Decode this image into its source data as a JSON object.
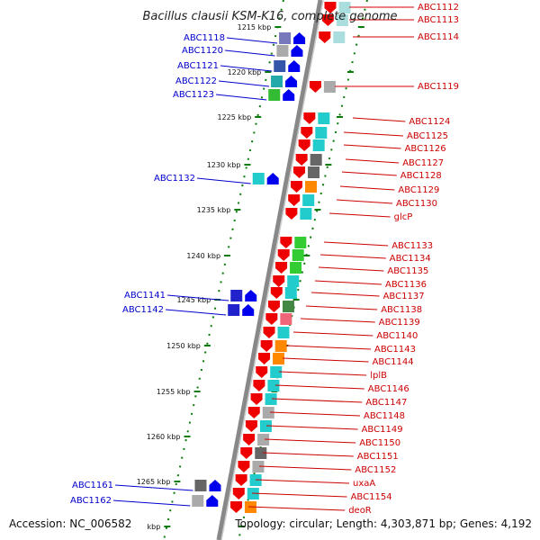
{
  "title": "Bacillus clausii KSM-K16, complete genome",
  "accession": "Accession: NC_006582",
  "summary": "Topology: circular; Length: 4,303,871 bp; Genes: 4,192",
  "colors": {
    "forward_label": "#cc0000",
    "reverse_label": "#0000cc",
    "backbone": "#888888",
    "tick": "#0a7a0a"
  },
  "ticks": [
    "1215 kbp",
    "1220 kbp",
    "1225 kbp",
    "1230 kbp",
    "1235 kbp",
    "1240 kbp",
    "1245 kbp",
    "1250 kbp",
    "1255 kbp",
    "1260 kbp",
    "1265 kbp",
    "kbp"
  ],
  "reverse_genes": [
    {
      "label": "ABC1118",
      "cog": "#7777bb"
    },
    {
      "label": "ABC1120",
      "cog": "#aaaaaa"
    },
    {
      "label": "ABC1121",
      "cog": "#3355aa"
    },
    {
      "label": "ABC1122",
      "cog": "#22aaaa"
    },
    {
      "label": "ABC1123",
      "cog": "#33bb33"
    },
    {
      "label": "ABC1132",
      "cog": "#22cccc"
    },
    {
      "label": "ABC1141",
      "cog": "#2222cc"
    },
    {
      "label": "ABC1142",
      "cog": "#2222cc"
    },
    {
      "label": "ABC1161",
      "cog": "#666666"
    },
    {
      "label": "ABC1162",
      "cog": "#aaaaaa"
    }
  ],
  "forward_genes": [
    {
      "label": "ABC1112",
      "cog": "#aadddd"
    },
    {
      "label": "ABC1113",
      "cog": "#aadddd"
    },
    {
      "label": "ABC1114",
      "cog": "#aadddd"
    },
    {
      "label": "ABC1119",
      "cog": "#aaaaaa"
    },
    {
      "label": "ABC1124",
      "cog": "#22cccc"
    },
    {
      "label": "ABC1125",
      "cog": "#22cccc"
    },
    {
      "label": "ABC1126",
      "cog": "#22cccc"
    },
    {
      "label": "ABC1127",
      "cog": "#666666"
    },
    {
      "label": "ABC1128",
      "cog": "#666666"
    },
    {
      "label": "ABC1129",
      "cog": "#ff8800"
    },
    {
      "label": "ABC1130",
      "cog": "#22cccc"
    },
    {
      "label": "glcP",
      "cog": "#22cccc"
    },
    {
      "label": "ABC1133",
      "cog": "#33cc33"
    },
    {
      "label": "ABC1134",
      "cog": "#33cc33"
    },
    {
      "label": "ABC1135",
      "cog": "#33cc33"
    },
    {
      "label": "ABC1136",
      "cog": "#22cccc"
    },
    {
      "label": "ABC1137",
      "cog": "#22cccc"
    },
    {
      "label": "ABC1138",
      "cog": "#448844"
    },
    {
      "label": "ABC1139",
      "cog": "#ee6677"
    },
    {
      "label": "ABC1140",
      "cog": "#22cccc"
    },
    {
      "label": "ABC1143",
      "cog": "#ff8800"
    },
    {
      "label": "ABC1144",
      "cog": "#ff8800"
    },
    {
      "label": "lplB",
      "cog": "#22cccc"
    },
    {
      "label": "ABC1146",
      "cog": "#22cccc"
    },
    {
      "label": "ABC1147",
      "cog": "#22cccc"
    },
    {
      "label": "ABC1148",
      "cog": "#aaaaaa"
    },
    {
      "label": "ABC1149",
      "cog": "#22cccc"
    },
    {
      "label": "ABC1150",
      "cog": "#aaaaaa"
    },
    {
      "label": "ABC1151",
      "cog": "#666666"
    },
    {
      "label": "ABC1152",
      "cog": "#aaaaaa"
    },
    {
      "label": "uxaA",
      "cog": "#22cccc"
    },
    {
      "label": "ABC1154",
      "cog": "#22cccc"
    },
    {
      "label": "deoR",
      "cog": "#ff8800"
    }
  ]
}
